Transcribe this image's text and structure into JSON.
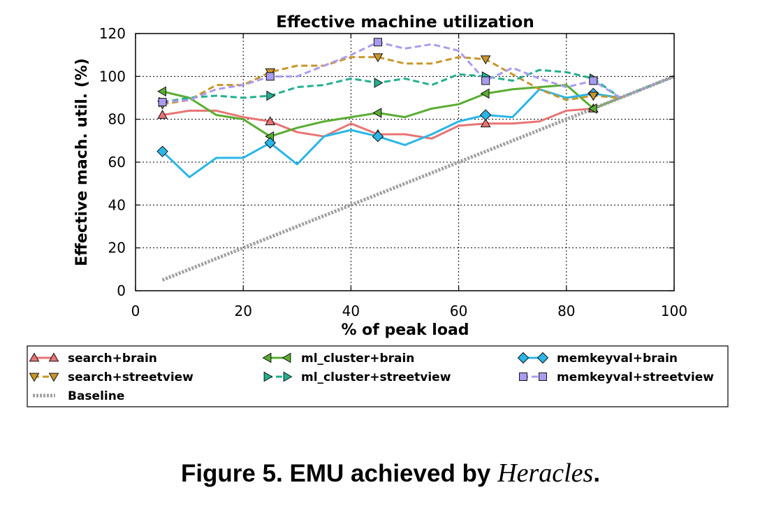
{
  "chart_data": {
    "type": "line",
    "title": "Effective machine utilization",
    "xlabel": "% of peak load",
    "ylabel": "Effective mach. util. (%)",
    "xlim": [
      0,
      100
    ],
    "ylim": [
      0,
      120
    ],
    "xticks": [
      "0",
      "20",
      "40",
      "60",
      "80",
      "100"
    ],
    "yticks": [
      "0",
      "20",
      "40",
      "60",
      "80",
      "100",
      "120"
    ],
    "grid": true,
    "legend_position": "bottom",
    "series": [
      {
        "name": "search+brain",
        "color": "#e87474",
        "marker": "triangle-up",
        "dash": "solid",
        "x": [
          5,
          10,
          15,
          20,
          25,
          30,
          35,
          40,
          45,
          50,
          55,
          60,
          65,
          70,
          75,
          80,
          85,
          90,
          95,
          100
        ],
        "y": [
          82,
          84,
          84,
          81,
          79,
          74,
          72,
          78,
          73,
          73,
          71,
          77,
          78,
          78,
          79,
          84,
          85,
          90,
          95,
          100
        ]
      },
      {
        "name": "ml_cluster+brain",
        "color": "#5aad32",
        "marker": "triangle-left",
        "dash": "solid",
        "x": [
          5,
          10,
          15,
          20,
          25,
          30,
          35,
          40,
          45,
          50,
          55,
          60,
          65,
          70,
          75,
          80,
          85,
          90,
          95,
          100
        ],
        "y": [
          93,
          90,
          82,
          80,
          72,
          76,
          79,
          81,
          83,
          81,
          85,
          87,
          92,
          94,
          95,
          96,
          85,
          90,
          95,
          100
        ]
      },
      {
        "name": "memkeyval+brain",
        "color": "#29b6e8",
        "marker": "diamond",
        "dash": "solid",
        "x": [
          5,
          10,
          15,
          20,
          25,
          30,
          35,
          40,
          45,
          50,
          55,
          60,
          65,
          70,
          75,
          80,
          85,
          90,
          95,
          100
        ],
        "y": [
          65,
          53,
          62,
          62,
          69,
          59,
          72,
          75,
          72,
          68,
          73,
          79,
          82,
          81,
          94,
          90,
          92,
          90,
          95,
          100
        ]
      },
      {
        "name": "search+streetview",
        "color": "#c9962a",
        "marker": "triangle-down",
        "dash": "dashed",
        "x": [
          5,
          10,
          15,
          20,
          25,
          30,
          35,
          40,
          45,
          50,
          55,
          60,
          65,
          70,
          75,
          80,
          85,
          90,
          95,
          100
        ],
        "y": [
          87,
          89,
          96,
          96,
          102,
          105,
          105,
          109,
          109,
          106,
          106,
          109,
          108,
          101,
          94,
          89,
          91,
          90,
          95,
          100
        ]
      },
      {
        "name": "ml_cluster+streetview",
        "color": "#22b08f",
        "marker": "triangle-right",
        "dash": "dashed",
        "x": [
          5,
          10,
          15,
          20,
          25,
          30,
          35,
          40,
          45,
          50,
          55,
          60,
          65,
          70,
          75,
          80,
          85,
          90,
          95,
          100
        ],
        "y": [
          88,
          90,
          91,
          90,
          91,
          95,
          96,
          99,
          97,
          99,
          96,
          101,
          100,
          98,
          103,
          102,
          99,
          90,
          95,
          100
        ]
      },
      {
        "name": "memkeyval+streetview",
        "color": "#a99cf0",
        "marker": "square",
        "dash": "dashed",
        "x": [
          5,
          10,
          15,
          20,
          25,
          30,
          35,
          40,
          45,
          50,
          55,
          60,
          65,
          70,
          75,
          80,
          85,
          90,
          95,
          100
        ],
        "y": [
          88,
          89,
          94,
          96,
          100,
          100,
          105,
          110,
          116,
          113,
          115,
          112,
          98,
          104,
          99,
          95,
          98,
          90,
          95,
          100
        ]
      },
      {
        "name": "Baseline",
        "color": "#a0a0a0",
        "marker": "none",
        "dash": "dotted",
        "x": [
          5,
          100
        ],
        "y": [
          5,
          100
        ]
      }
    ],
    "marker_points": {
      "search+brain": [
        5,
        25,
        45,
        65,
        85
      ],
      "ml_cluster+brain": [
        5,
        25,
        45,
        65,
        85
      ],
      "memkeyval+brain": [
        5,
        25,
        45,
        65,
        85
      ],
      "search+streetview": [
        5,
        25,
        45,
        65,
        85
      ],
      "ml_cluster+streetview": [
        5,
        25,
        45,
        65,
        85
      ],
      "memkeyval+streetview": [
        5,
        25,
        45,
        65,
        85
      ]
    }
  },
  "caption": {
    "prefix": "Figure 5. EMU achieved by ",
    "emphasis": "Heracles",
    "suffix": "."
  }
}
